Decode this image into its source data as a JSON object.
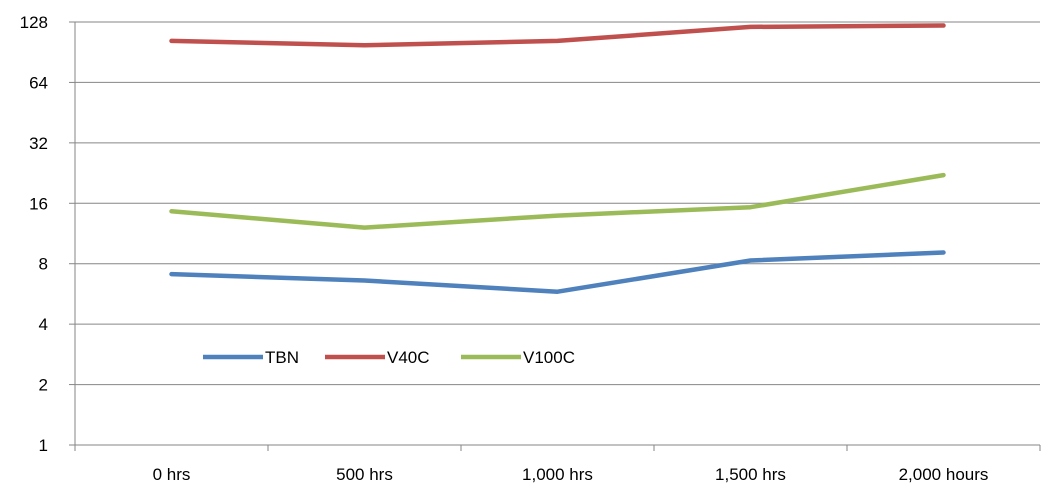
{
  "chart_data": {
    "type": "line",
    "title": "",
    "xlabel": "",
    "ylabel": "",
    "y_scale": "log2",
    "ylim": [
      1,
      128
    ],
    "y_ticks": [
      "1",
      "2",
      "4",
      "8",
      "16",
      "32",
      "64",
      "128"
    ],
    "categories": [
      "0 hrs",
      "500 hrs",
      "1,000 hrs",
      "1,500 hrs",
      "2,000 hours"
    ],
    "grid": "horizontal",
    "legend_position": "lower-left",
    "series": [
      {
        "name": "TBN",
        "color": "#4F81BD",
        "values": [
          7.1,
          6.6,
          5.8,
          8.3,
          9.1
        ]
      },
      {
        "name": "V40C",
        "color": "#C0504D",
        "values": [
          103,
          98,
          103,
          121,
          123
        ]
      },
      {
        "name": "V100C",
        "color": "#9BBB59",
        "values": [
          14.6,
          12.1,
          13.9,
          15.3,
          22.1
        ]
      }
    ]
  }
}
